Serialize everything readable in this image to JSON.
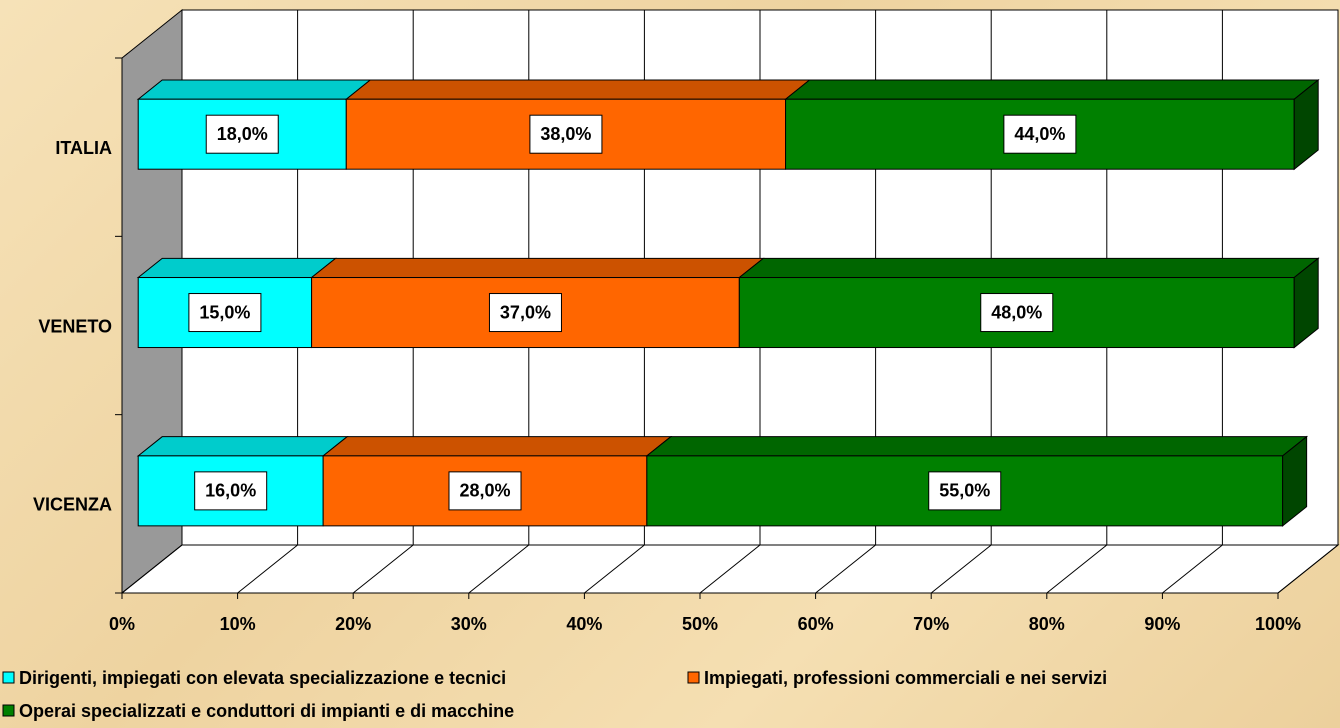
{
  "chart_data": {
    "type": "bar3d_stacked_horizontal",
    "categories": [
      "ITALIA",
      "VENETO",
      "VICENZA"
    ],
    "series": [
      {
        "name": "Dirigenti, impiegati con elevata specializzazione e tecnici",
        "color": "#00ffff",
        "values": [
          18,
          15,
          16
        ],
        "value_labels": [
          "18,0%",
          "15,0%",
          "16,0%"
        ]
      },
      {
        "name": "Impiegati, professioni commerciali e nei servizi",
        "color": "#ff6600",
        "values": [
          38,
          37,
          28
        ],
        "value_labels": [
          "38,0%",
          "37,0%",
          "28,0%"
        ]
      },
      {
        "name": "Operai specializzati e conduttori di impianti e di macchine",
        "color": "#008000",
        "values": [
          44,
          48,
          55
        ],
        "value_labels": [
          "44,0%",
          "48,0%",
          "55,0%"
        ]
      }
    ],
    "xlim": [
      0,
      100
    ],
    "xticks": [
      {
        "value": 0,
        "label": "0%"
      },
      {
        "value": 10,
        "label": "10%"
      },
      {
        "value": 20,
        "label": "20%"
      },
      {
        "value": 30,
        "label": "30%"
      },
      {
        "value": 40,
        "label": "40%"
      },
      {
        "value": 50,
        "label": "50%"
      },
      {
        "value": 60,
        "label": "60%"
      },
      {
        "value": 70,
        "label": "70%"
      },
      {
        "value": 80,
        "label": "80%"
      },
      {
        "value": 90,
        "label": "90%"
      },
      {
        "value": 100,
        "label": "100%"
      }
    ],
    "grid": true,
    "legend": "bottom"
  }
}
